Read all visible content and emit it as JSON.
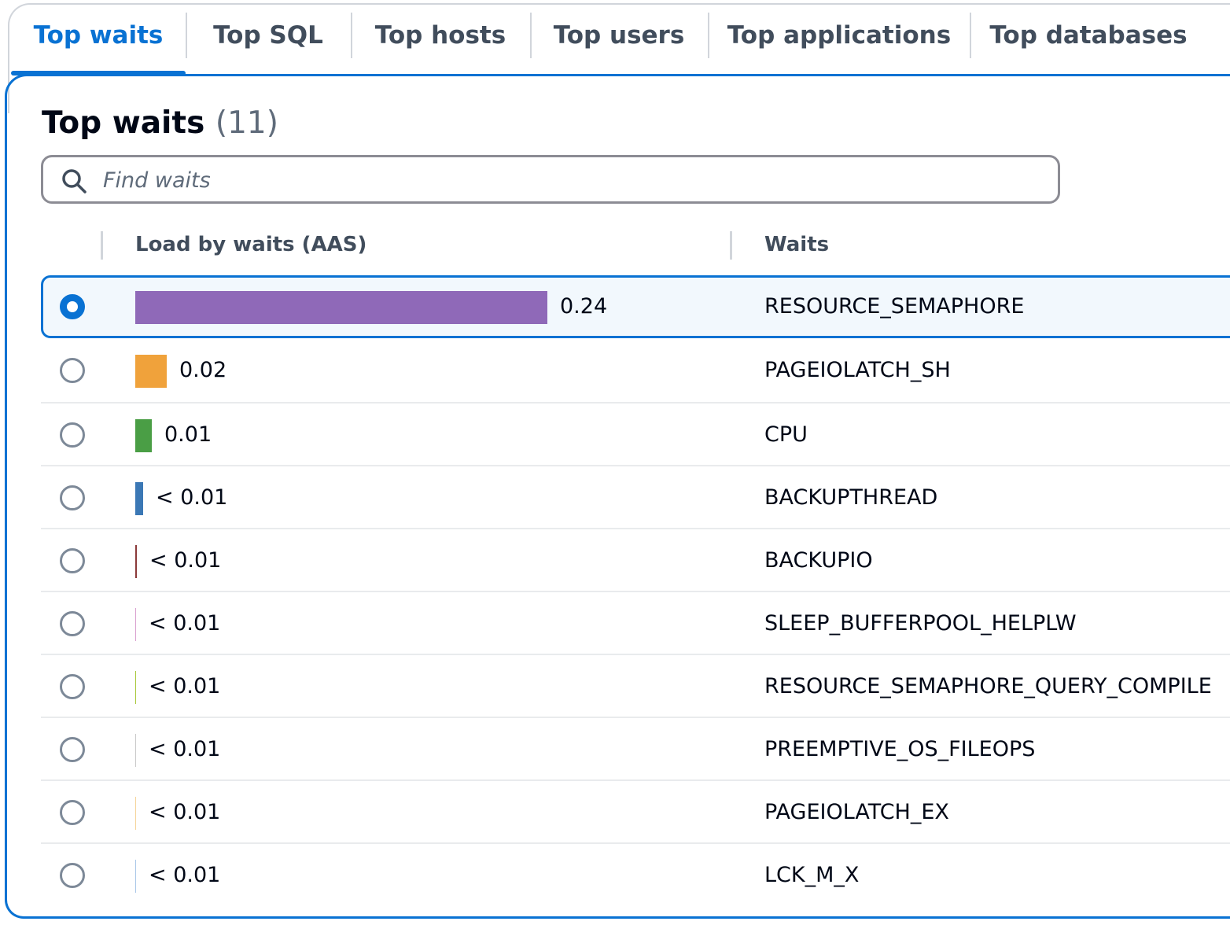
{
  "tabs": [
    {
      "label": "Top waits",
      "active": true
    },
    {
      "label": "Top SQL",
      "active": false
    },
    {
      "label": "Top hosts",
      "active": false
    },
    {
      "label": "Top users",
      "active": false
    },
    {
      "label": "Top applications",
      "active": false
    },
    {
      "label": "Top databases",
      "active": false
    }
  ],
  "header": {
    "title": "Top waits",
    "count": "(11)"
  },
  "search": {
    "placeholder": "Find waits",
    "value": ""
  },
  "table": {
    "columns": {
      "load": "Load by waits (AAS)",
      "waits": "Waits"
    },
    "rows": [
      {
        "value": "0.24",
        "wait": "RESOURCE_SEMAPHORE",
        "selected": true,
        "color": "#8f69b8",
        "fraction": 1.0
      },
      {
        "value": "0.02",
        "wait": "PAGEIOLATCH_SH",
        "selected": false,
        "color": "#f0a23b",
        "fraction": 0.077
      },
      {
        "value": "0.01",
        "wait": "CPU",
        "selected": false,
        "color": "#4a9e45",
        "fraction": 0.04
      },
      {
        "value": "< 0.01",
        "wait": "BACKUPTHREAD",
        "selected": false,
        "color": "#3b78b5",
        "fraction": 0.019
      },
      {
        "value": "< 0.01",
        "wait": "BACKUPIO",
        "selected": false,
        "color": "#8b3a3a",
        "fraction": 0.004
      },
      {
        "value": "< 0.01",
        "wait": "SLEEP_BUFFERPOOL_HELPLW",
        "selected": false,
        "color": "#d9a0d0",
        "fraction": 0.002
      },
      {
        "value": "< 0.01",
        "wait": "RESOURCE_SEMAPHORE_QUERY_COMPILE",
        "selected": false,
        "color": "#a8c83a",
        "fraction": 0.002
      },
      {
        "value": "< 0.01",
        "wait": "PREEMPTIVE_OS_FILEOPS",
        "selected": false,
        "color": "#c9c9c9",
        "fraction": 0.002
      },
      {
        "value": "< 0.01",
        "wait": "PAGEIOLATCH_EX",
        "selected": false,
        "color": "#f5d49a",
        "fraction": 0.002
      },
      {
        "value": "< 0.01",
        "wait": "LCK_M_X",
        "selected": false,
        "color": "#a9c7e8",
        "fraction": 0.002
      }
    ]
  }
}
